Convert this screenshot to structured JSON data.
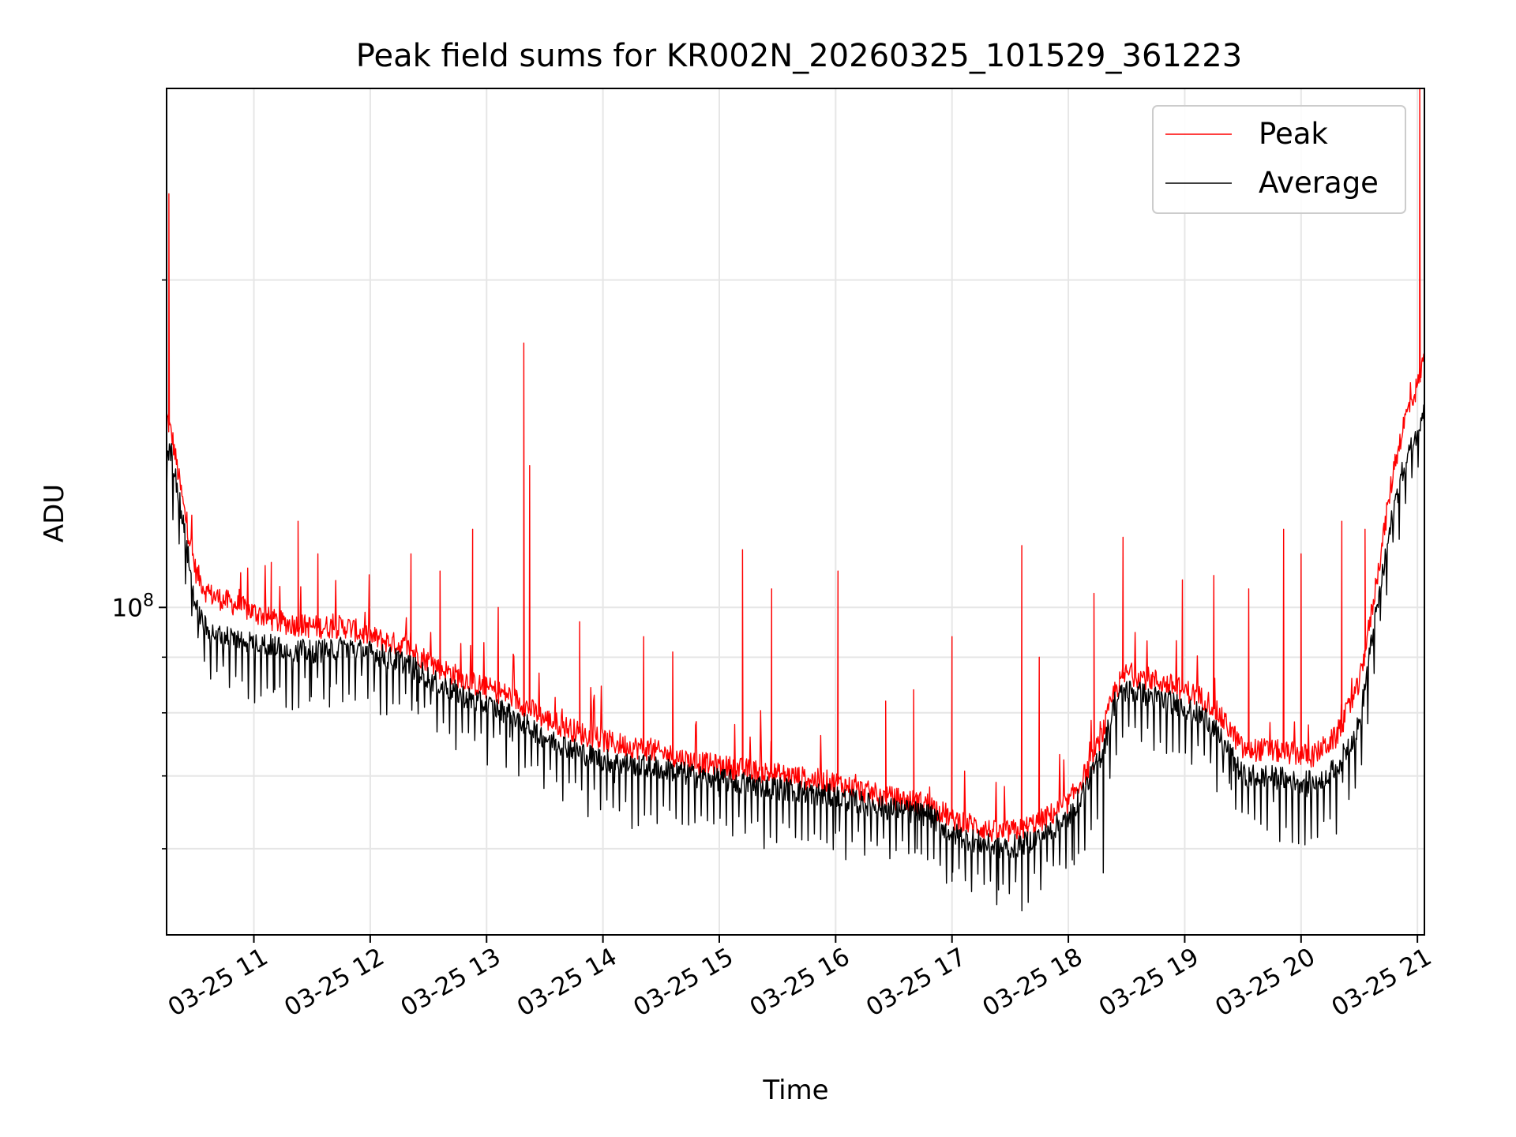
{
  "chart_data": {
    "type": "line",
    "title": "Peak field sums for KR002N_20260325_101529_361223",
    "xlabel": "Time",
    "ylabel": "ADU",
    "yscale": "log",
    "grid": true,
    "legend_position": "top-right",
    "xlim_hours": [
      10.25,
      21.06
    ],
    "ylim": [
      50000000,
      300000000
    ],
    "x_ticks": [
      {
        "value": 11,
        "label": "03-25 11"
      },
      {
        "value": 12,
        "label": "03-25 12"
      },
      {
        "value": 13,
        "label": "03-25 13"
      },
      {
        "value": 14,
        "label": "03-25 14"
      },
      {
        "value": 15,
        "label": "03-25 15"
      },
      {
        "value": 16,
        "label": "03-25 16"
      },
      {
        "value": 17,
        "label": "03-25 17"
      },
      {
        "value": 18,
        "label": "03-25 18"
      },
      {
        "value": 19,
        "label": "03-25 19"
      },
      {
        "value": 20,
        "label": "03-25 20"
      },
      {
        "value": 21,
        "label": "03-25 21"
      }
    ],
    "y_major_ticks": [
      {
        "value": 100000000,
        "base": "10",
        "exp": "8"
      }
    ],
    "y_minor_ticks": [
      60000000,
      70000000,
      80000000,
      90000000,
      200000000
    ],
    "series": [
      {
        "name": "Peak",
        "color": "#ff0000",
        "baseline": {
          "x": [
            10.25,
            10.3,
            10.4,
            10.5,
            10.6,
            10.8,
            11.0,
            11.2,
            11.5,
            11.8,
            12.0,
            12.3,
            12.6,
            12.9,
            13.2,
            13.5,
            13.9,
            14.1,
            14.4,
            14.8,
            15.2,
            15.6,
            16.0,
            16.4,
            16.8,
            17.0,
            17.2,
            17.4,
            17.6,
            17.8,
            18.0,
            18.1,
            18.2,
            18.3,
            18.4,
            18.5,
            18.7,
            19.0,
            19.2,
            19.4,
            19.5,
            19.7,
            19.9,
            20.1,
            20.3,
            20.5,
            20.6,
            20.7,
            20.8,
            20.9,
            21.0,
            21.06
          ],
          "y": [
            150000000,
            143000000,
            123000000,
            108000000,
            103000000,
            101000000,
            99000000,
            97000000,
            96000000,
            96000000,
            94000000,
            92000000,
            88000000,
            85000000,
            83000000,
            79000000,
            76000000,
            75000000,
            74000000,
            72000000,
            71000000,
            70000000,
            69000000,
            67000000,
            66000000,
            64000000,
            63000000,
            62000000,
            62500000,
            64000000,
            66000000,
            69000000,
            72000000,
            77000000,
            84000000,
            87000000,
            86000000,
            84000000,
            82000000,
            77000000,
            74000000,
            74000000,
            73500000,
            73000000,
            76000000,
            85000000,
            98000000,
            115000000,
            135000000,
            150000000,
            160000000,
            170000000
          ]
        },
        "spikes": [
          {
            "x": 10.27,
            "y": 240000000
          },
          {
            "x": 11.15,
            "y": 110000000
          },
          {
            "x": 11.38,
            "y": 120000000
          },
          {
            "x": 11.55,
            "y": 112000000
          },
          {
            "x": 12.35,
            "y": 112000000
          },
          {
            "x": 12.6,
            "y": 108000000
          },
          {
            "x": 12.88,
            "y": 118000000
          },
          {
            "x": 13.1,
            "y": 100000000
          },
          {
            "x": 13.32,
            "y": 175000000
          },
          {
            "x": 13.37,
            "y": 135000000
          },
          {
            "x": 13.8,
            "y": 97000000
          },
          {
            "x": 14.35,
            "y": 94000000
          },
          {
            "x": 14.6,
            "y": 91000000
          },
          {
            "x": 15.2,
            "y": 113000000
          },
          {
            "x": 15.45,
            "y": 104000000
          },
          {
            "x": 16.02,
            "y": 108000000
          },
          {
            "x": 16.43,
            "y": 82000000
          },
          {
            "x": 16.67,
            "y": 84000000
          },
          {
            "x": 17.0,
            "y": 94000000
          },
          {
            "x": 17.6,
            "y": 114000000
          },
          {
            "x": 17.75,
            "y": 90000000
          },
          {
            "x": 18.22,
            "y": 103000000
          },
          {
            "x": 18.47,
            "y": 116000000
          },
          {
            "x": 18.98,
            "y": 106000000
          },
          {
            "x": 19.25,
            "y": 107000000
          },
          {
            "x": 19.55,
            "y": 104000000
          },
          {
            "x": 19.85,
            "y": 118000000
          },
          {
            "x": 20.0,
            "y": 112000000
          },
          {
            "x": 20.35,
            "y": 120000000
          },
          {
            "x": 20.55,
            "y": 118000000
          },
          {
            "x": 21.02,
            "y": 300000000
          }
        ]
      },
      {
        "name": "Average",
        "color": "#000000",
        "baseline": {
          "x": [
            10.25,
            10.3,
            10.4,
            10.5,
            10.6,
            10.8,
            11.0,
            11.2,
            11.5,
            11.8,
            12.0,
            12.3,
            12.6,
            12.9,
            13.2,
            13.5,
            13.9,
            14.1,
            14.4,
            14.8,
            15.2,
            15.6,
            16.0,
            16.4,
            16.8,
            17.0,
            17.2,
            17.4,
            17.6,
            17.8,
            18.0,
            18.1,
            18.2,
            18.3,
            18.4,
            18.5,
            18.7,
            19.0,
            19.2,
            19.4,
            19.5,
            19.7,
            19.9,
            20.1,
            20.3,
            20.5,
            20.6,
            20.7,
            20.8,
            20.9,
            21.0,
            21.06
          ],
          "y": [
            140000000,
            138000000,
            118000000,
            100000000,
            95000000,
            94000000,
            93000000,
            92000000,
            91000000,
            92000000,
            91000000,
            89000000,
            85000000,
            82000000,
            80000000,
            76000000,
            73000000,
            72000000,
            71500000,
            70000000,
            69000000,
            68000000,
            67000000,
            65500000,
            64500000,
            62000000,
            61000000,
            60000000,
            60500000,
            62000000,
            64000000,
            67000000,
            70000000,
            74000000,
            82000000,
            84000000,
            83000000,
            81000000,
            79000000,
            73000000,
            70000000,
            70000000,
            69500000,
            69000000,
            71000000,
            78000000,
            92000000,
            107000000,
            124000000,
            137000000,
            145000000,
            155000000
          ]
        },
        "dips": [
          {
            "x": 11.18,
            "y": 84000000
          },
          {
            "x": 11.48,
            "y": 82000000
          },
          {
            "x": 11.65,
            "y": 81000000
          },
          {
            "x": 12.4,
            "y": 82000000
          },
          {
            "x": 13.2,
            "y": 76000000
          },
          {
            "x": 14.1,
            "y": 69000000
          },
          {
            "x": 15.0,
            "y": 67000000
          },
          {
            "x": 16.0,
            "y": 62000000
          },
          {
            "x": 16.7,
            "y": 60000000
          },
          {
            "x": 17.0,
            "y": 56000000
          },
          {
            "x": 17.4,
            "y": 55000000
          },
          {
            "x": 17.6,
            "y": 55500000
          },
          {
            "x": 18.05,
            "y": 58000000
          },
          {
            "x": 18.3,
            "y": 57000000
          },
          {
            "x": 19.4,
            "y": 68000000
          },
          {
            "x": 20.05,
            "y": 67000000
          }
        ]
      }
    ]
  }
}
